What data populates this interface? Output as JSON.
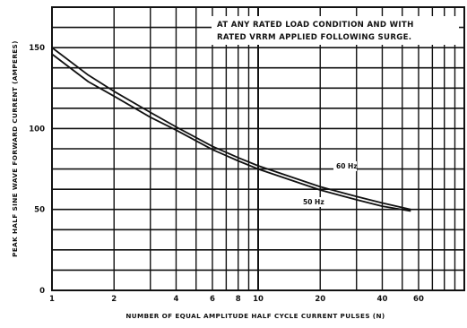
{
  "chart_data": {
    "type": "line",
    "title": "",
    "xlabel": "NUMBER OF EQUAL AMPLITUDE HALF CYCLE CURRENT PULSES (N)",
    "ylabel": "PEAK HALF SINE WAVE FORWARD CURRENT (AMPERES)",
    "xscale": "log",
    "xlim": [
      1,
      100
    ],
    "ylim": [
      0,
      175
    ],
    "x_ticks": [
      1,
      2,
      4,
      6,
      8,
      10,
      20,
      40,
      60
    ],
    "x_tick_labels": [
      "1",
      "2",
      "4",
      "6",
      "8",
      "10",
      "20",
      "40",
      "60"
    ],
    "y_ticks": [
      0,
      50,
      100,
      150
    ],
    "y_tick_labels": [
      "0",
      "50",
      "100",
      "150"
    ],
    "grid": true,
    "annotation_lines": [
      "AT ANY RATED LOAD CONDITION AND WITH",
      "RATED VRRM APPLIED FOLLOWING SURGE."
    ],
    "series": [
      {
        "name": "60 Hz",
        "x": [
          1,
          1.5,
          2,
          3,
          4,
          6,
          8,
          10,
          20,
          30,
          40,
          55
        ],
        "y": [
          150,
          133,
          123,
          110,
          101,
          89,
          82,
          77,
          64,
          58,
          54,
          50
        ]
      },
      {
        "name": "50 Hz",
        "x": [
          1,
          1.5,
          2,
          3,
          4,
          6,
          8,
          10,
          20,
          30,
          40,
          55
        ],
        "y": [
          146,
          129,
          120,
          107,
          99,
          87,
          80,
          75,
          62,
          56,
          52,
          49
        ]
      }
    ]
  }
}
